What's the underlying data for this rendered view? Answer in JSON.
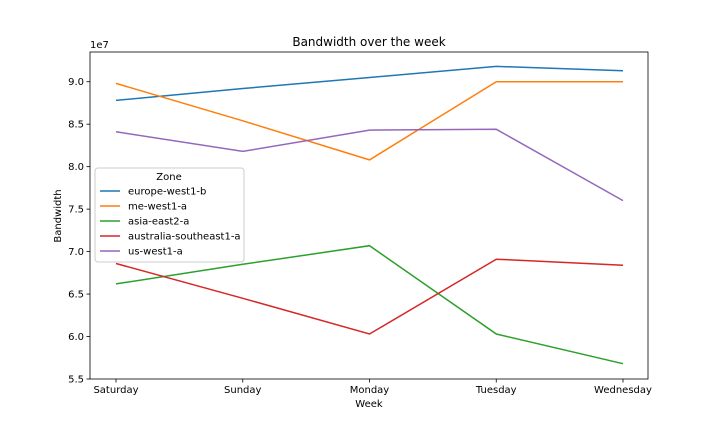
{
  "chart_data": {
    "type": "line",
    "title": "Bandwidth over the week",
    "xlabel": "Week",
    "ylabel": "Bandwidth",
    "y_offset_label": "1e7",
    "categories": [
      "Saturday",
      "Sunday",
      "Monday",
      "Tuesday",
      "Wednesday"
    ],
    "ylim": [
      5.5,
      9.35
    ],
    "yticks": [
      5.5,
      6.0,
      6.5,
      7.0,
      7.5,
      8.0,
      8.5,
      9.0
    ],
    "ytick_labels": [
      "5.5",
      "6.0",
      "6.5",
      "7.0",
      "7.5",
      "8.0",
      "8.5",
      "9.0"
    ],
    "grid": false,
    "legend": {
      "title": "Zone",
      "placement": "center-left"
    },
    "series": [
      {
        "name": "europe-west1-b",
        "color": "#1f77b4",
        "values": [
          8.78,
          8.92,
          9.05,
          9.18,
          9.13
        ]
      },
      {
        "name": "me-west1-a",
        "color": "#ff7f0e",
        "values": [
          8.98,
          8.54,
          8.08,
          9.0,
          9.0
        ]
      },
      {
        "name": "asia-east2-a",
        "color": "#2ca02c",
        "values": [
          6.62,
          6.85,
          7.07,
          6.03,
          5.68
        ]
      },
      {
        "name": "australia-southeast1-a",
        "color": "#d62728",
        "values": [
          6.86,
          6.45,
          6.03,
          6.91,
          6.84
        ]
      },
      {
        "name": "us-west1-a",
        "color": "#9467bd",
        "values": [
          8.41,
          8.18,
          8.43,
          8.44,
          7.6
        ]
      }
    ]
  }
}
